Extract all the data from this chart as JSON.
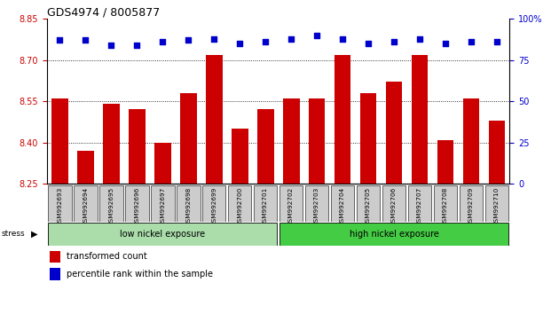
{
  "title": "GDS4974 / 8005877",
  "samples": [
    "GSM992693",
    "GSM992694",
    "GSM992695",
    "GSM992696",
    "GSM992697",
    "GSM992698",
    "GSM992699",
    "GSM992700",
    "GSM992701",
    "GSM992702",
    "GSM992703",
    "GSM992704",
    "GSM992705",
    "GSM992706",
    "GSM992707",
    "GSM992708",
    "GSM992709",
    "GSM992710"
  ],
  "bar_values": [
    8.56,
    8.37,
    8.54,
    8.52,
    8.4,
    8.58,
    8.72,
    8.45,
    8.52,
    8.56,
    8.56,
    8.72,
    8.58,
    8.62,
    8.72,
    8.41,
    8.56,
    8.48
  ],
  "dot_values": [
    87,
    87,
    84,
    84,
    86,
    87,
    88,
    85,
    86,
    88,
    90,
    88,
    85,
    86,
    88,
    85,
    86,
    86
  ],
  "ymin": 8.25,
  "ymax": 8.85,
  "yticks": [
    8.25,
    8.4,
    8.55,
    8.7,
    8.85
  ],
  "right_yticks": [
    0,
    25,
    50,
    75,
    100
  ],
  "bar_color": "#cc0000",
  "dot_color": "#0000cc",
  "group1_label": "low nickel exposure",
  "group2_label": "high nickel exposure",
  "group1_count": 9,
  "stress_label": "stress",
  "legend_bar": "transformed count",
  "legend_dot": "percentile rank within the sample",
  "bg_plot": "#ffffff",
  "tick_color_left": "#cc0000",
  "tick_color_right": "#0000cc",
  "dotted_line_values": [
    8.4,
    8.55,
    8.7
  ],
  "group1_color": "#aaddaa",
  "group2_color": "#44cc44",
  "xticklabel_bg": "#cccccc",
  "title_fontsize": 9,
  "axis_fontsize": 7,
  "label_fontsize": 7
}
